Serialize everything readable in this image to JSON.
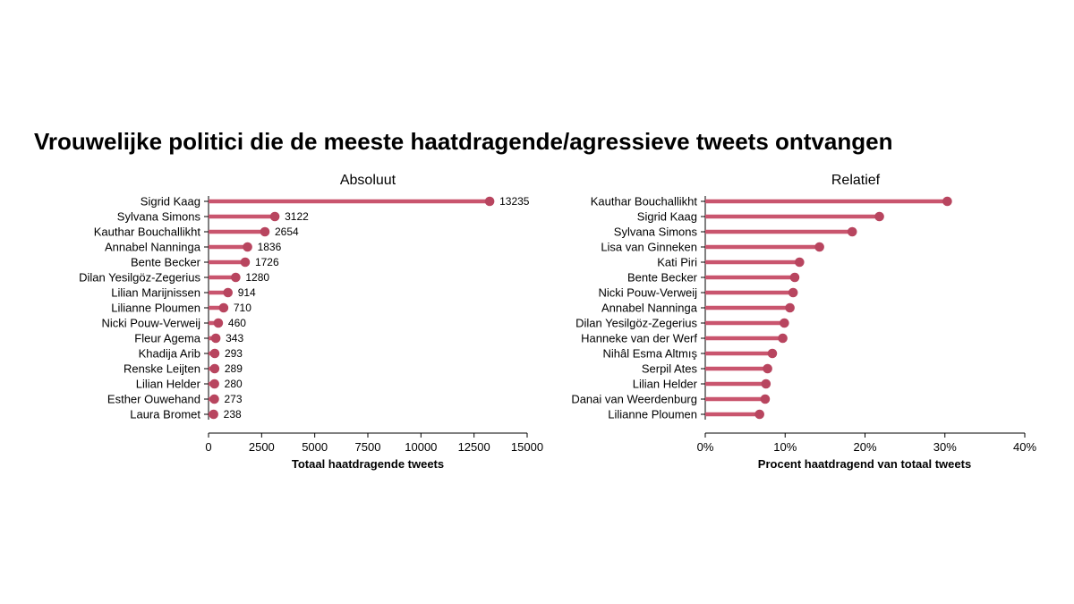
{
  "title": "Vrouwelijke politici die de meeste haatdragende/agressieve tweets ontvangen",
  "colors": {
    "mark": "#c9556e",
    "axis": "#000000"
  },
  "chart_data": [
    {
      "type": "lollipop",
      "title": "Absoluut",
      "xlabel": "Totaal haatdragende tweets",
      "xlim": [
        0,
        15000
      ],
      "xticks": [
        0,
        2500,
        5000,
        7500,
        10000,
        12500,
        15000
      ],
      "xtick_labels": [
        "0",
        "2500",
        "5000",
        "7500",
        "10000",
        "12500",
        "15000"
      ],
      "show_value_labels": true,
      "categories": [
        "Sigrid Kaag",
        "Sylvana Simons",
        "Kauthar Bouchallikht",
        "Annabel Nanninga",
        "Bente Becker",
        "Dilan Yesilgöz-Zegerius",
        "Lilian Marijnissen",
        "Lilianne Ploumen",
        "Nicki Pouw-Verweij",
        "Fleur Agema",
        "Khadija Arib",
        "Renske Leijten",
        "Lilian Helder",
        "Esther Ouwehand",
        "Laura Bromet"
      ],
      "values": [
        13235,
        3122,
        2654,
        1836,
        1726,
        1280,
        914,
        710,
        460,
        343,
        293,
        289,
        280,
        273,
        238
      ],
      "value_labels": [
        "13235",
        "3122",
        "2654",
        "1836",
        "1726",
        "1280",
        "914",
        "710",
        "460",
        "343",
        "293",
        "289",
        "280",
        "273",
        "238"
      ]
    },
    {
      "type": "lollipop",
      "title": "Relatief",
      "xlabel": "Procent haatdragend van totaal tweets",
      "xlim": [
        0,
        40
      ],
      "xticks": [
        0,
        10,
        20,
        30,
        40
      ],
      "xtick_labels": [
        "0%",
        "10%",
        "20%",
        "30%",
        "40%"
      ],
      "show_value_labels": false,
      "categories": [
        "Kauthar Bouchallikht",
        "Sigrid Kaag",
        "Sylvana Simons",
        "Lisa van Ginneken",
        "Kati Piri",
        "Bente Becker",
        "Nicki Pouw-Verweij",
        "Annabel Nanninga",
        "Dilan Yesilgöz-Zegerius",
        "Hanneke van der Werf",
        "Nihâl Esma Altmış",
        "Serpil Ates",
        "Lilian Helder",
        "Danai van Weerdenburg",
        "Lilianne Ploumen"
      ],
      "values": [
        30.3,
        21.8,
        18.4,
        14.3,
        11.8,
        11.2,
        11.0,
        10.6,
        9.9,
        9.7,
        8.4,
        7.8,
        7.6,
        7.5,
        6.8
      ]
    }
  ]
}
